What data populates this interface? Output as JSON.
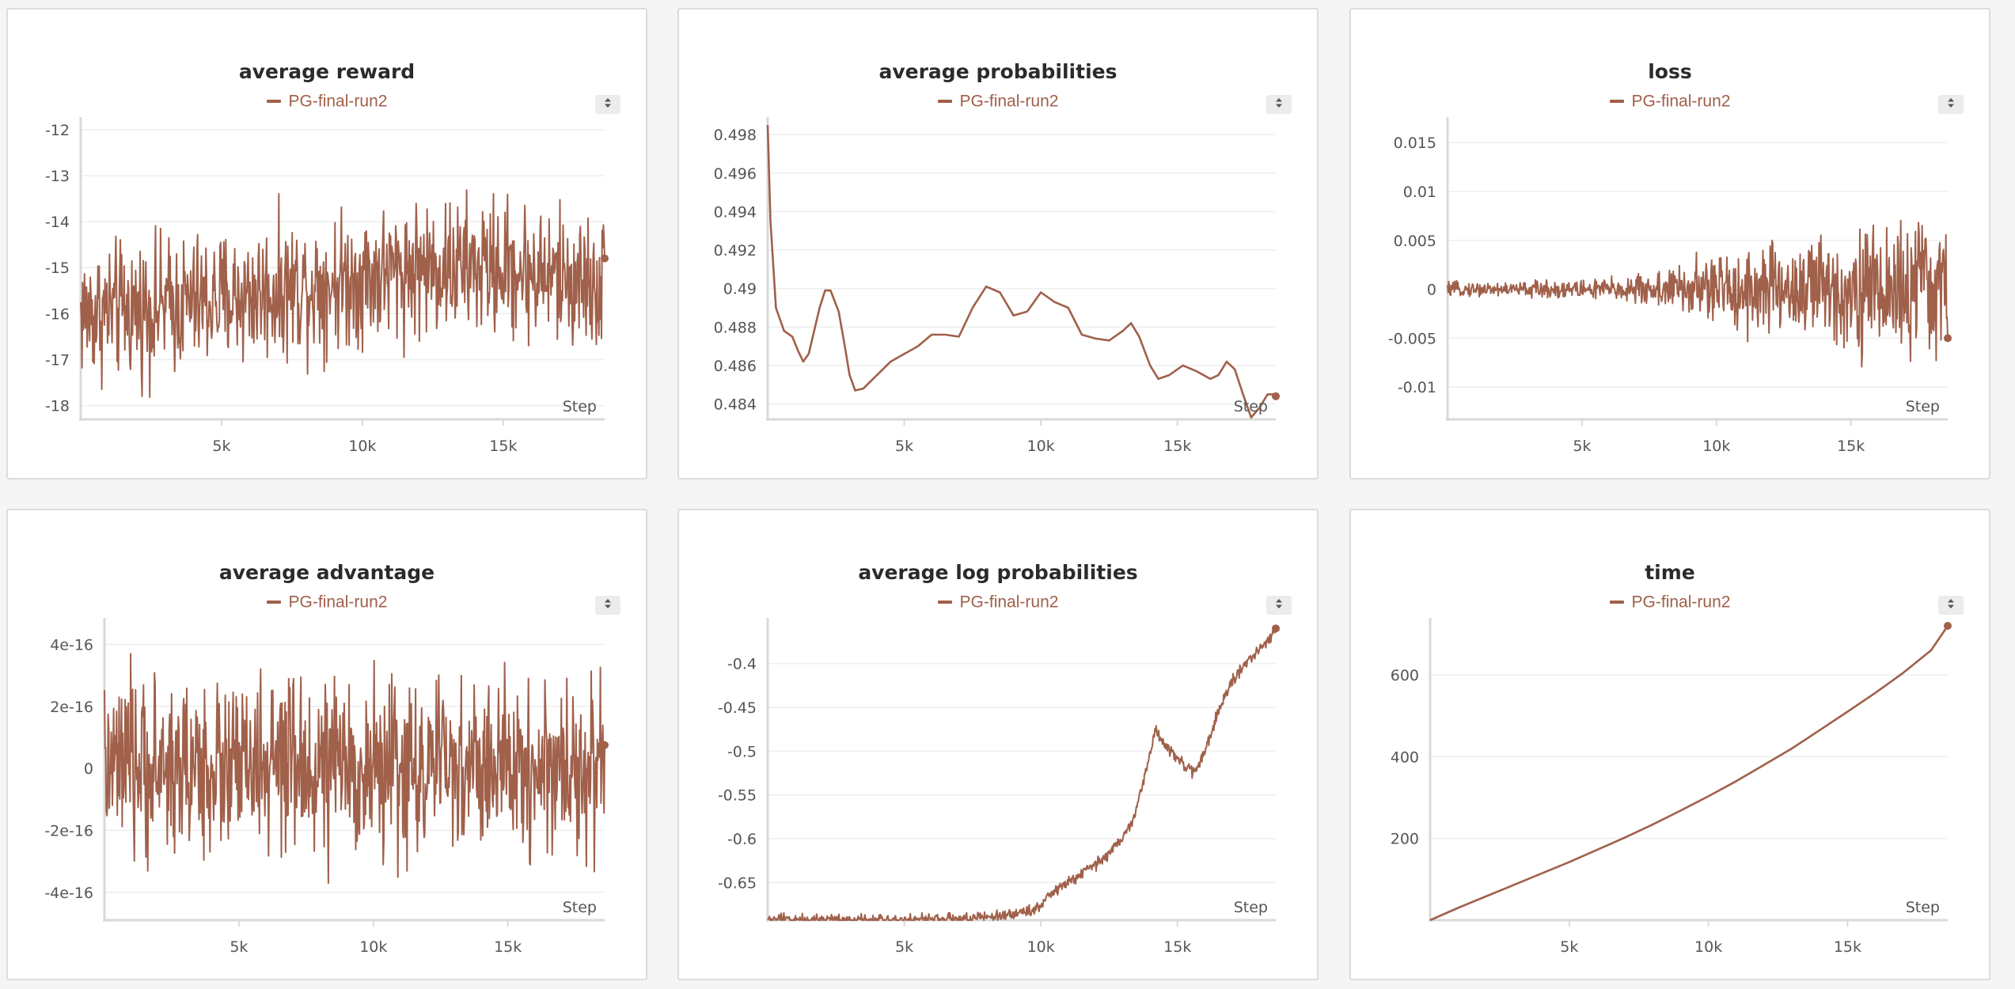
{
  "theme": {
    "series_color": "#a0604a",
    "axis_color": "#d9d9d9",
    "grid_color": "#eeeeee",
    "text_color": "#555555"
  },
  "icons": {
    "legend_sort": "sort-arrows-icon"
  },
  "chart_data": [
    {
      "type": "line",
      "title": "average reward",
      "legend": [
        "PG-final-run2"
      ],
      "xlabel": "Step",
      "xlim": [
        0,
        18600
      ],
      "xticks": [
        5000,
        10000,
        15000
      ],
      "xtick_labels": [
        "5k",
        "10k",
        "15k"
      ],
      "ylim": [
        -18.3,
        -11.9
      ],
      "yticks": [
        -18,
        -17,
        -16,
        -15,
        -14,
        -13,
        -12
      ],
      "ytick_labels": [
        "-18",
        "-17",
        "-16",
        "-15",
        "-14",
        "-13",
        "-12"
      ],
      "series": [
        {
          "name": "PG-final-run2",
          "style": "noisy",
          "trend_x": [
            0,
            2000,
            5000,
            8000,
            10000,
            12000,
            15000,
            18600
          ],
          "trend_y": [
            -16.0,
            -15.9,
            -15.7,
            -15.4,
            -15.2,
            -15.0,
            -15.0,
            -15.4
          ],
          "noise": 0.9,
          "last_value": -14.8
        }
      ]
    },
    {
      "type": "line",
      "title": "average probabilities",
      "legend": [
        "PG-final-run2"
      ],
      "xlabel": "Step",
      "xlim": [
        0,
        18600
      ],
      "xticks": [
        5000,
        10000,
        15000
      ],
      "xtick_labels": [
        "5k",
        "10k",
        "15k"
      ],
      "ylim": [
        0.4832,
        0.4985
      ],
      "yticks": [
        0.484,
        0.486,
        0.488,
        0.49,
        0.492,
        0.494,
        0.496,
        0.498
      ],
      "ytick_labels": [
        "0.484",
        "0.486",
        "0.488",
        "0.49",
        "0.492",
        "0.494",
        "0.496",
        "0.498"
      ],
      "series": [
        {
          "name": "PG-final-run2",
          "style": "smooth",
          "x": [
            0,
            100,
            300,
            600,
            900,
            1100,
            1300,
            1500,
            1700,
            1900,
            2100,
            2300,
            2600,
            2800,
            3000,
            3200,
            3500,
            4000,
            4500,
            5000,
            5500,
            6000,
            6500,
            7000,
            7500,
            8000,
            8500,
            9000,
            9500,
            10000,
            10500,
            11000,
            11500,
            12000,
            12500,
            13000,
            13300,
            13600,
            14000,
            14300,
            14700,
            15200,
            15700,
            16200,
            16500,
            16800,
            17100,
            17400,
            17700,
            18000,
            18300,
            18600
          ],
          "y": [
            0.4985,
            0.4935,
            0.489,
            0.4878,
            0.4875,
            0.4868,
            0.4862,
            0.4866,
            0.4878,
            0.489,
            0.4899,
            0.4899,
            0.4888,
            0.4872,
            0.4855,
            0.4847,
            0.4848,
            0.4855,
            0.4862,
            0.4866,
            0.487,
            0.4876,
            0.4876,
            0.4875,
            0.489,
            0.4901,
            0.4898,
            0.4886,
            0.4888,
            0.4898,
            0.4893,
            0.489,
            0.4876,
            0.4874,
            0.4873,
            0.4878,
            0.4882,
            0.4875,
            0.486,
            0.4853,
            0.4855,
            0.486,
            0.4857,
            0.4853,
            0.4855,
            0.4862,
            0.4858,
            0.4845,
            0.4833,
            0.4838,
            0.4845,
            0.4845
          ],
          "last_value": 0.4844
        }
      ]
    },
    {
      "type": "line",
      "title": "loss",
      "legend": [
        "PG-final-run2"
      ],
      "xlabel": "Step",
      "xlim": [
        0,
        18600
      ],
      "xticks": [
        5000,
        10000,
        15000
      ],
      "xtick_labels": [
        "5k",
        "10k",
        "15k"
      ],
      "ylim": [
        -0.0133,
        0.0168
      ],
      "yticks": [
        -0.01,
        -0.005,
        0,
        0.005,
        0.01,
        0.015
      ],
      "ytick_labels": [
        "-0.01",
        "-0.005",
        "0",
        "0.005",
        "0.01",
        "0.015"
      ],
      "series": [
        {
          "name": "PG-final-run2",
          "style": "noisy",
          "trend_x": [
            0,
            2000,
            5000,
            7000,
            9000,
            11000,
            13000,
            15000,
            17000,
            18600
          ],
          "trend_y": [
            0,
            0,
            0,
            0,
            0,
            0,
            0,
            0,
            0,
            0
          ],
          "noise_x": [
            0,
            3000,
            6000,
            8000,
            10000,
            12000,
            14000,
            16000,
            17500,
            18600
          ],
          "noise_amp": [
            0.0004,
            0.0005,
            0.0007,
            0.0012,
            0.0022,
            0.003,
            0.0035,
            0.004,
            0.0045,
            0.004
          ],
          "last_value": -0.005
        }
      ]
    },
    {
      "type": "line",
      "title": "average advantage",
      "legend": [
        "PG-final-run2"
      ],
      "xlabel": "Step",
      "xlim": [
        0,
        18600
      ],
      "xticks": [
        5000,
        10000,
        15000
      ],
      "xtick_labels": [
        "5k",
        "10k",
        "15k"
      ],
      "ylim": [
        -4.9e-16,
        4.6e-16
      ],
      "yticks": [
        -4e-16,
        -2e-16,
        0,
        2e-16,
        4e-16
      ],
      "ytick_labels": [
        "-4e-16",
        "-2e-16",
        "0",
        "2e-16",
        "4e-16"
      ],
      "series": [
        {
          "name": "PG-final-run2",
          "style": "noisy",
          "trend_x": [
            0,
            18600
          ],
          "trend_y": [
            0,
            0
          ],
          "noise": 1.7e-16,
          "last_value": 7.5e-17
        }
      ]
    },
    {
      "type": "line",
      "title": "average log probabilities",
      "legend": [
        "PG-final-run2"
      ],
      "xlabel": "Step",
      "xlim": [
        0,
        18600
      ],
      "xticks": [
        5000,
        10000,
        15000
      ],
      "xtick_labels": [
        "5k",
        "10k",
        "15k"
      ],
      "ylim": [
        -0.693,
        -0.357
      ],
      "yticks": [
        -0.65,
        -0.6,
        -0.55,
        -0.5,
        -0.45,
        -0.4
      ],
      "ytick_labels": [
        "-0.65",
        "-0.6",
        "-0.55",
        "-0.5",
        "-0.45",
        "-0.4"
      ],
      "series": [
        {
          "name": "PG-final-run2",
          "style": "noisy",
          "trend_x": [
            0,
            2000,
            4000,
            6000,
            7000,
            8000,
            9000,
            9800,
            10500,
            11500,
            12200,
            13000,
            13400,
            13800,
            14200,
            14500,
            15000,
            15600,
            16000,
            16500,
            17000,
            17500,
            18000,
            18600
          ],
          "trend_y": [
            -0.692,
            -0.692,
            -0.692,
            -0.692,
            -0.691,
            -0.69,
            -0.686,
            -0.68,
            -0.66,
            -0.64,
            -0.625,
            -0.6,
            -0.575,
            -0.53,
            -0.475,
            -0.49,
            -0.51,
            -0.525,
            -0.5,
            -0.455,
            -0.42,
            -0.4,
            -0.385,
            -0.36
          ],
          "noise": 0.004,
          "last_value": -0.36
        }
      ]
    },
    {
      "type": "line",
      "title": "time",
      "legend": [
        "PG-final-run2"
      ],
      "xlabel": "Step",
      "xlim": [
        0,
        18600
      ],
      "xticks": [
        5000,
        10000,
        15000
      ],
      "xtick_labels": [
        "5k",
        "10k",
        "15k"
      ],
      "ylim": [
        0,
        720
      ],
      "yticks": [
        200,
        400,
        600
      ],
      "ytick_labels": [
        "200",
        "400",
        "600"
      ],
      "series": [
        {
          "name": "PG-final-run2",
          "style": "smooth",
          "x": [
            0,
            1000,
            2000,
            3000,
            4000,
            5000,
            6000,
            7000,
            8000,
            9000,
            10000,
            11000,
            12000,
            13000,
            14000,
            15000,
            16000,
            17000,
            18000,
            18600
          ],
          "y": [
            0,
            30,
            58,
            86,
            114,
            142,
            172,
            202,
            234,
            268,
            303,
            340,
            380,
            420,
            465,
            510,
            556,
            605,
            660,
            720
          ],
          "last_value": 720
        }
      ]
    }
  ]
}
